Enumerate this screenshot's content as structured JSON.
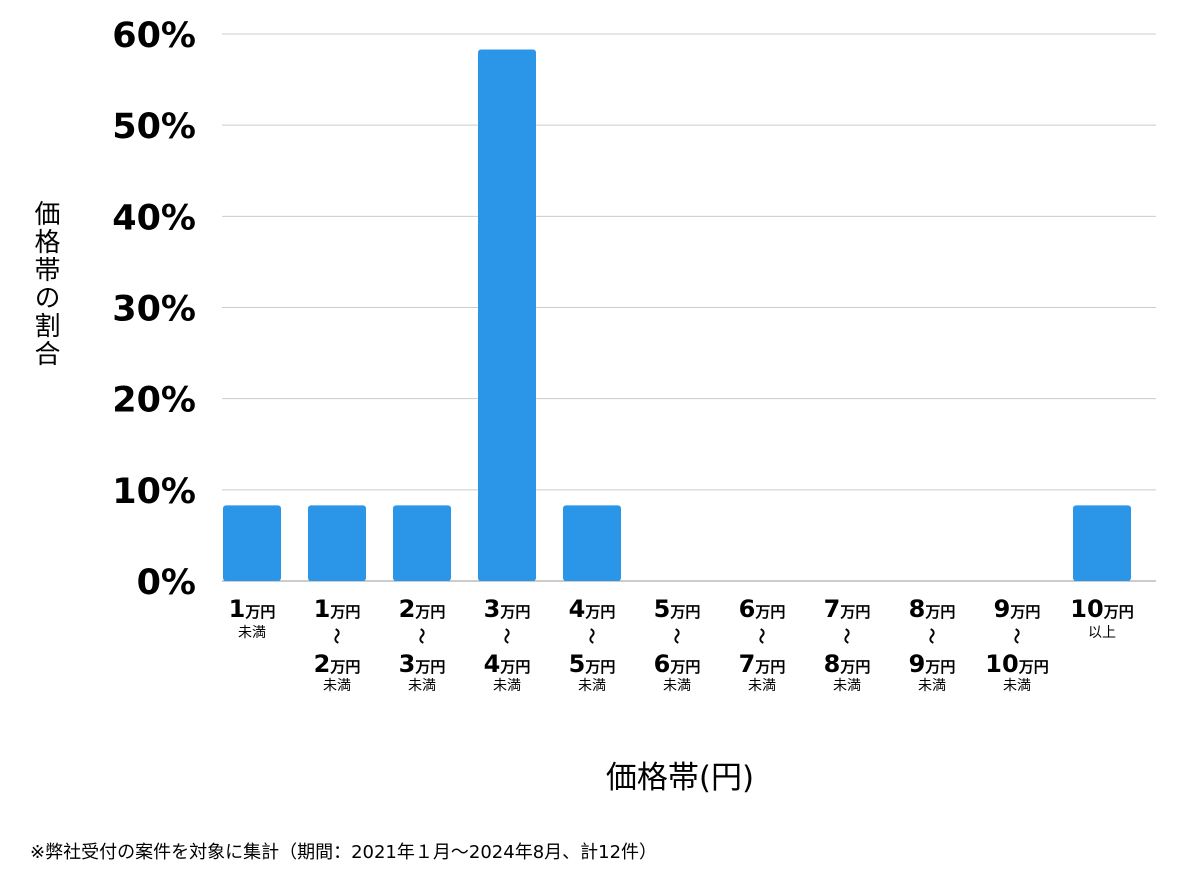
{
  "chart_data": {
    "type": "bar",
    "ylabel": "価格帯の割合",
    "xlabel": "価格帯(円)",
    "ylim": [
      0,
      60
    ],
    "yticks": [
      "0%",
      "10%",
      "20%",
      "30%",
      "40%",
      "50%",
      "60%"
    ],
    "grid": true,
    "color": "#2b95e8",
    "categories": [
      {
        "top": "1",
        "top_unit": "万円",
        "bottom": "",
        "bottom_unit": "",
        "note": "未満"
      },
      {
        "top": "1",
        "top_unit": "万円",
        "bottom": "2",
        "bottom_unit": "万円",
        "note": "未満"
      },
      {
        "top": "2",
        "top_unit": "万円",
        "bottom": "3",
        "bottom_unit": "万円",
        "note": "未満"
      },
      {
        "top": "3",
        "top_unit": "万円",
        "bottom": "4",
        "bottom_unit": "万円",
        "note": "未満"
      },
      {
        "top": "4",
        "top_unit": "万円",
        "bottom": "5",
        "bottom_unit": "万円",
        "note": "未満"
      },
      {
        "top": "5",
        "top_unit": "万円",
        "bottom": "6",
        "bottom_unit": "万円",
        "note": "未満"
      },
      {
        "top": "6",
        "top_unit": "万円",
        "bottom": "7",
        "bottom_unit": "万円",
        "note": "未満"
      },
      {
        "top": "7",
        "top_unit": "万円",
        "bottom": "8",
        "bottom_unit": "万円",
        "note": "未満"
      },
      {
        "top": "8",
        "top_unit": "万円",
        "bottom": "9",
        "bottom_unit": "万円",
        "note": "未満"
      },
      {
        "top": "9",
        "top_unit": "万円",
        "bottom": "10",
        "bottom_unit": "万円",
        "note": "未満"
      },
      {
        "top": "10",
        "top_unit": "万円",
        "bottom": "",
        "bottom_unit": "",
        "note": "以上"
      }
    ],
    "values": [
      8.3,
      8.3,
      8.3,
      58.3,
      8.3,
      0,
      0,
      0,
      0,
      0,
      8.3
    ],
    "range_symbol": "〜"
  },
  "footnote": "※弊社受付の案件を対象に集計（期間：2021年１月〜2024年8月、計12件）"
}
